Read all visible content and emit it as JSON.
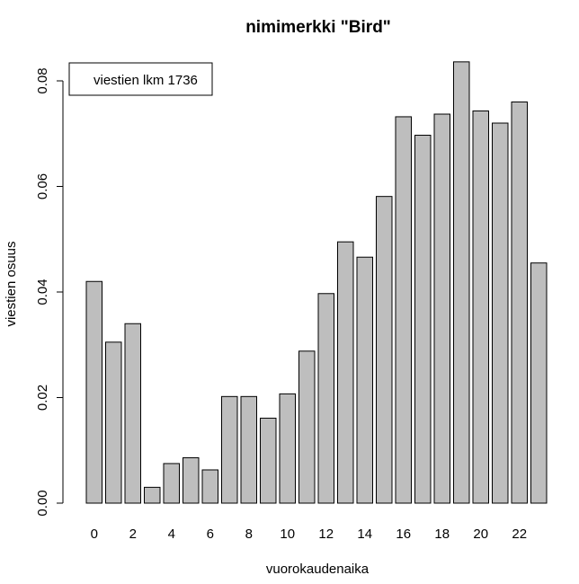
{
  "chart_data": {
    "type": "bar",
    "title": "nimimerkki \"Bird\"",
    "xlabel": "vuorokaudenaika",
    "ylabel": "viestien osuus",
    "categories": [
      "0",
      "1",
      "2",
      "3",
      "4",
      "5",
      "6",
      "7",
      "8",
      "9",
      "10",
      "11",
      "12",
      "13",
      "14",
      "15",
      "16",
      "17",
      "18",
      "19",
      "20",
      "21",
      "22",
      "23"
    ],
    "x_tick_labels": [
      "0",
      "2",
      "4",
      "6",
      "8",
      "10",
      "12",
      "14",
      "16",
      "18",
      "20",
      "22"
    ],
    "values": [
      0.042,
      0.0305,
      0.034,
      0.003,
      0.0075,
      0.0086,
      0.0063,
      0.0202,
      0.0202,
      0.0161,
      0.0207,
      0.0288,
      0.0397,
      0.0495,
      0.0466,
      0.0581,
      0.0732,
      0.0697,
      0.0737,
      0.0836,
      0.0743,
      0.072,
      0.076,
      0.0455
    ],
    "ylim": [
      0,
      0.08
    ],
    "y_ticks": [
      "0.00",
      "0.02",
      "0.04",
      "0.06",
      "0.08"
    ],
    "legend": "viestien lkm 1736",
    "legend_position": "top-left",
    "bar_color": "#bebebe",
    "grid": false
  }
}
